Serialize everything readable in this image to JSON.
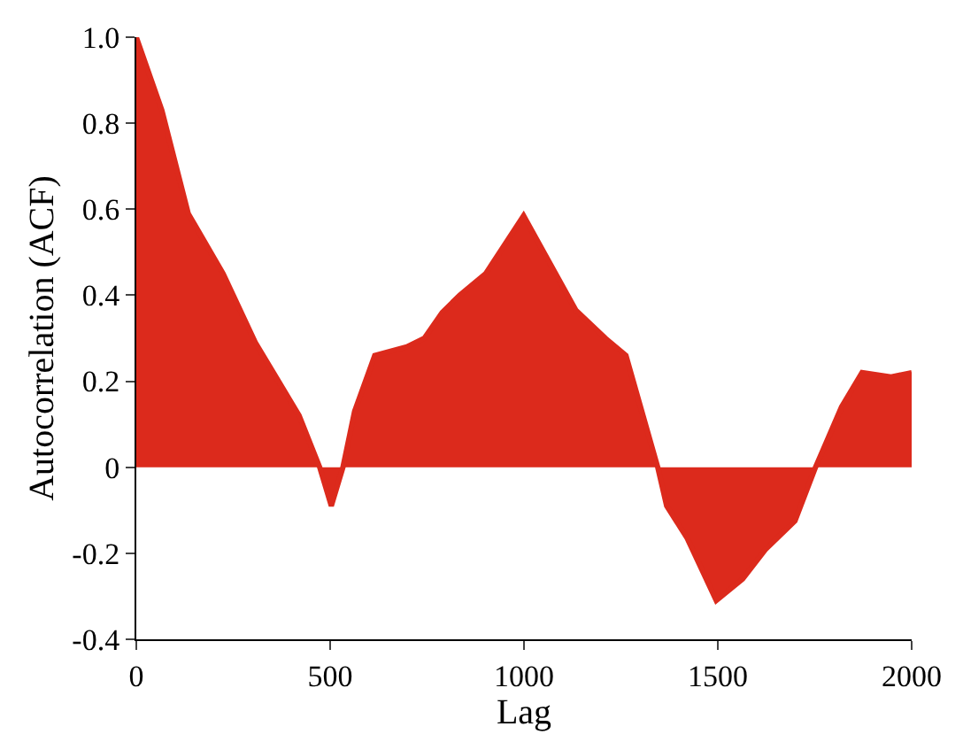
{
  "chart_data": {
    "type": "area",
    "xlabel": "Lag",
    "ylabel": "Autocorrelation (ACF)",
    "xlim": [
      0,
      2000
    ],
    "xticks": [
      0,
      500,
      1000,
      1500,
      2000
    ],
    "ylim": [
      -0.4,
      1.0
    ],
    "yticks": [
      -0.4,
      -0.2,
      0,
      0.2,
      0.4,
      0.6,
      0.8,
      {
        "value": 1.0,
        "label": "1.0"
      }
    ],
    "series": [
      {
        "color": "#dc2a1c",
        "x": [
          0,
          66,
          134,
          224,
          307,
          367,
          420,
          473,
          503,
          533,
          563,
          615,
          698,
          743,
          789,
          834,
          901,
          999,
          1134,
          1210,
          1263,
          1345,
          1368,
          1421,
          1496,
          1564,
          1624,
          1699,
          1752,
          1819,
          1872,
          1947,
          2000
        ],
        "values": [
          1.0,
          0.83,
          0.59,
          0.45,
          0.29,
          0.2,
          0.12,
          0,
          -0.09,
          0,
          0.13,
          0.26,
          0.28,
          0.3,
          0.36,
          0.4,
          0.45,
          0.585,
          0.365,
          0.3,
          0.26,
          0,
          -0.09,
          -0.165,
          -0.31,
          -0.26,
          -0.19,
          -0.125,
          0,
          0.14,
          0.22,
          0.21,
          0.22
        ]
      }
    ]
  }
}
